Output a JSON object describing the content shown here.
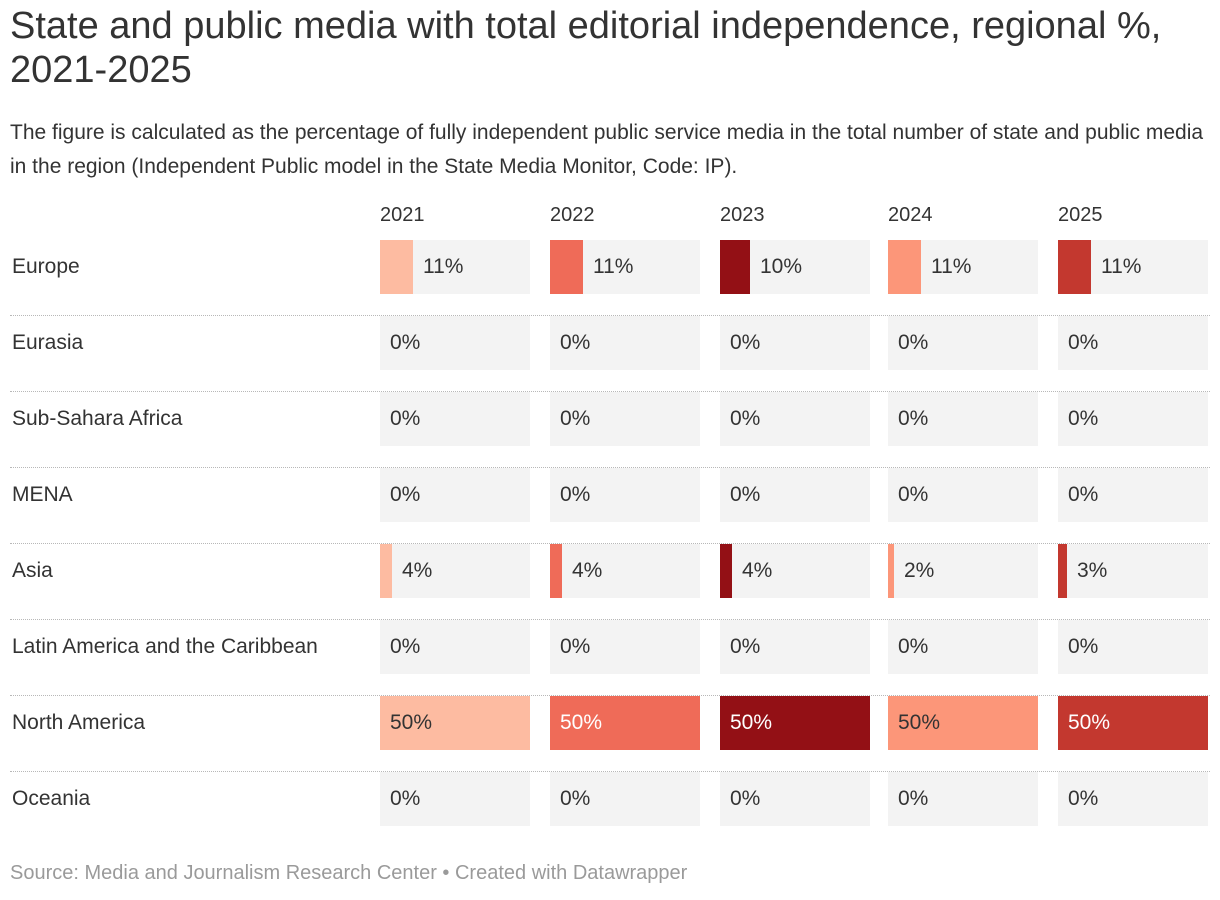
{
  "chart_data": {
    "type": "table",
    "title": "State and public media with total editorial independence, regional %, 2021-2025",
    "subtitle": "The figure is calculated as the percentage of fully independent public service media in the total number of state and public media in the region (Independent Public model in the State Media Monitor, Code: IP).",
    "columns": [
      "2021",
      "2022",
      "2023",
      "2024",
      "2025"
    ],
    "column_colors": [
      "#fdbba1",
      "#ef6b58",
      "#931015",
      "#fc9679",
      "#c3382f"
    ],
    "value_max": 50,
    "rows": [
      {
        "region": "Europe",
        "values": [
          11,
          11,
          10,
          11,
          11
        ],
        "labels": [
          "11%",
          "11%",
          "10%",
          "11%",
          "11%"
        ]
      },
      {
        "region": "Eurasia",
        "values": [
          0,
          0,
          0,
          0,
          0
        ],
        "labels": [
          "0%",
          "0%",
          "0%",
          "0%",
          "0%"
        ]
      },
      {
        "region": "Sub-Sahara Africa",
        "values": [
          0,
          0,
          0,
          0,
          0
        ],
        "labels": [
          "0%",
          "0%",
          "0%",
          "0%",
          "0%"
        ]
      },
      {
        "region": "MENA",
        "values": [
          0,
          0,
          0,
          0,
          0
        ],
        "labels": [
          "0%",
          "0%",
          "0%",
          "0%",
          "0%"
        ]
      },
      {
        "region": "Asia",
        "values": [
          4,
          4,
          4,
          2,
          3
        ],
        "labels": [
          "4%",
          "4%",
          "4%",
          "2%",
          "3%"
        ]
      },
      {
        "region": "Latin America and the Caribbean",
        "values": [
          0,
          0,
          0,
          0,
          0
        ],
        "labels": [
          "0%",
          "0%",
          "0%",
          "0%",
          "0%"
        ]
      },
      {
        "region": "North America",
        "values": [
          50,
          50,
          50,
          50,
          50
        ],
        "labels": [
          "50%",
          "50%",
          "50%",
          "50%",
          "50%"
        ]
      },
      {
        "region": "Oceania",
        "values": [
          0,
          0,
          0,
          0,
          0
        ],
        "labels": [
          "0%",
          "0%",
          "0%",
          "0%",
          "0%"
        ]
      }
    ]
  },
  "footer": {
    "text": "Source: Media and Journalism Research Center • Created with Datawrapper"
  }
}
